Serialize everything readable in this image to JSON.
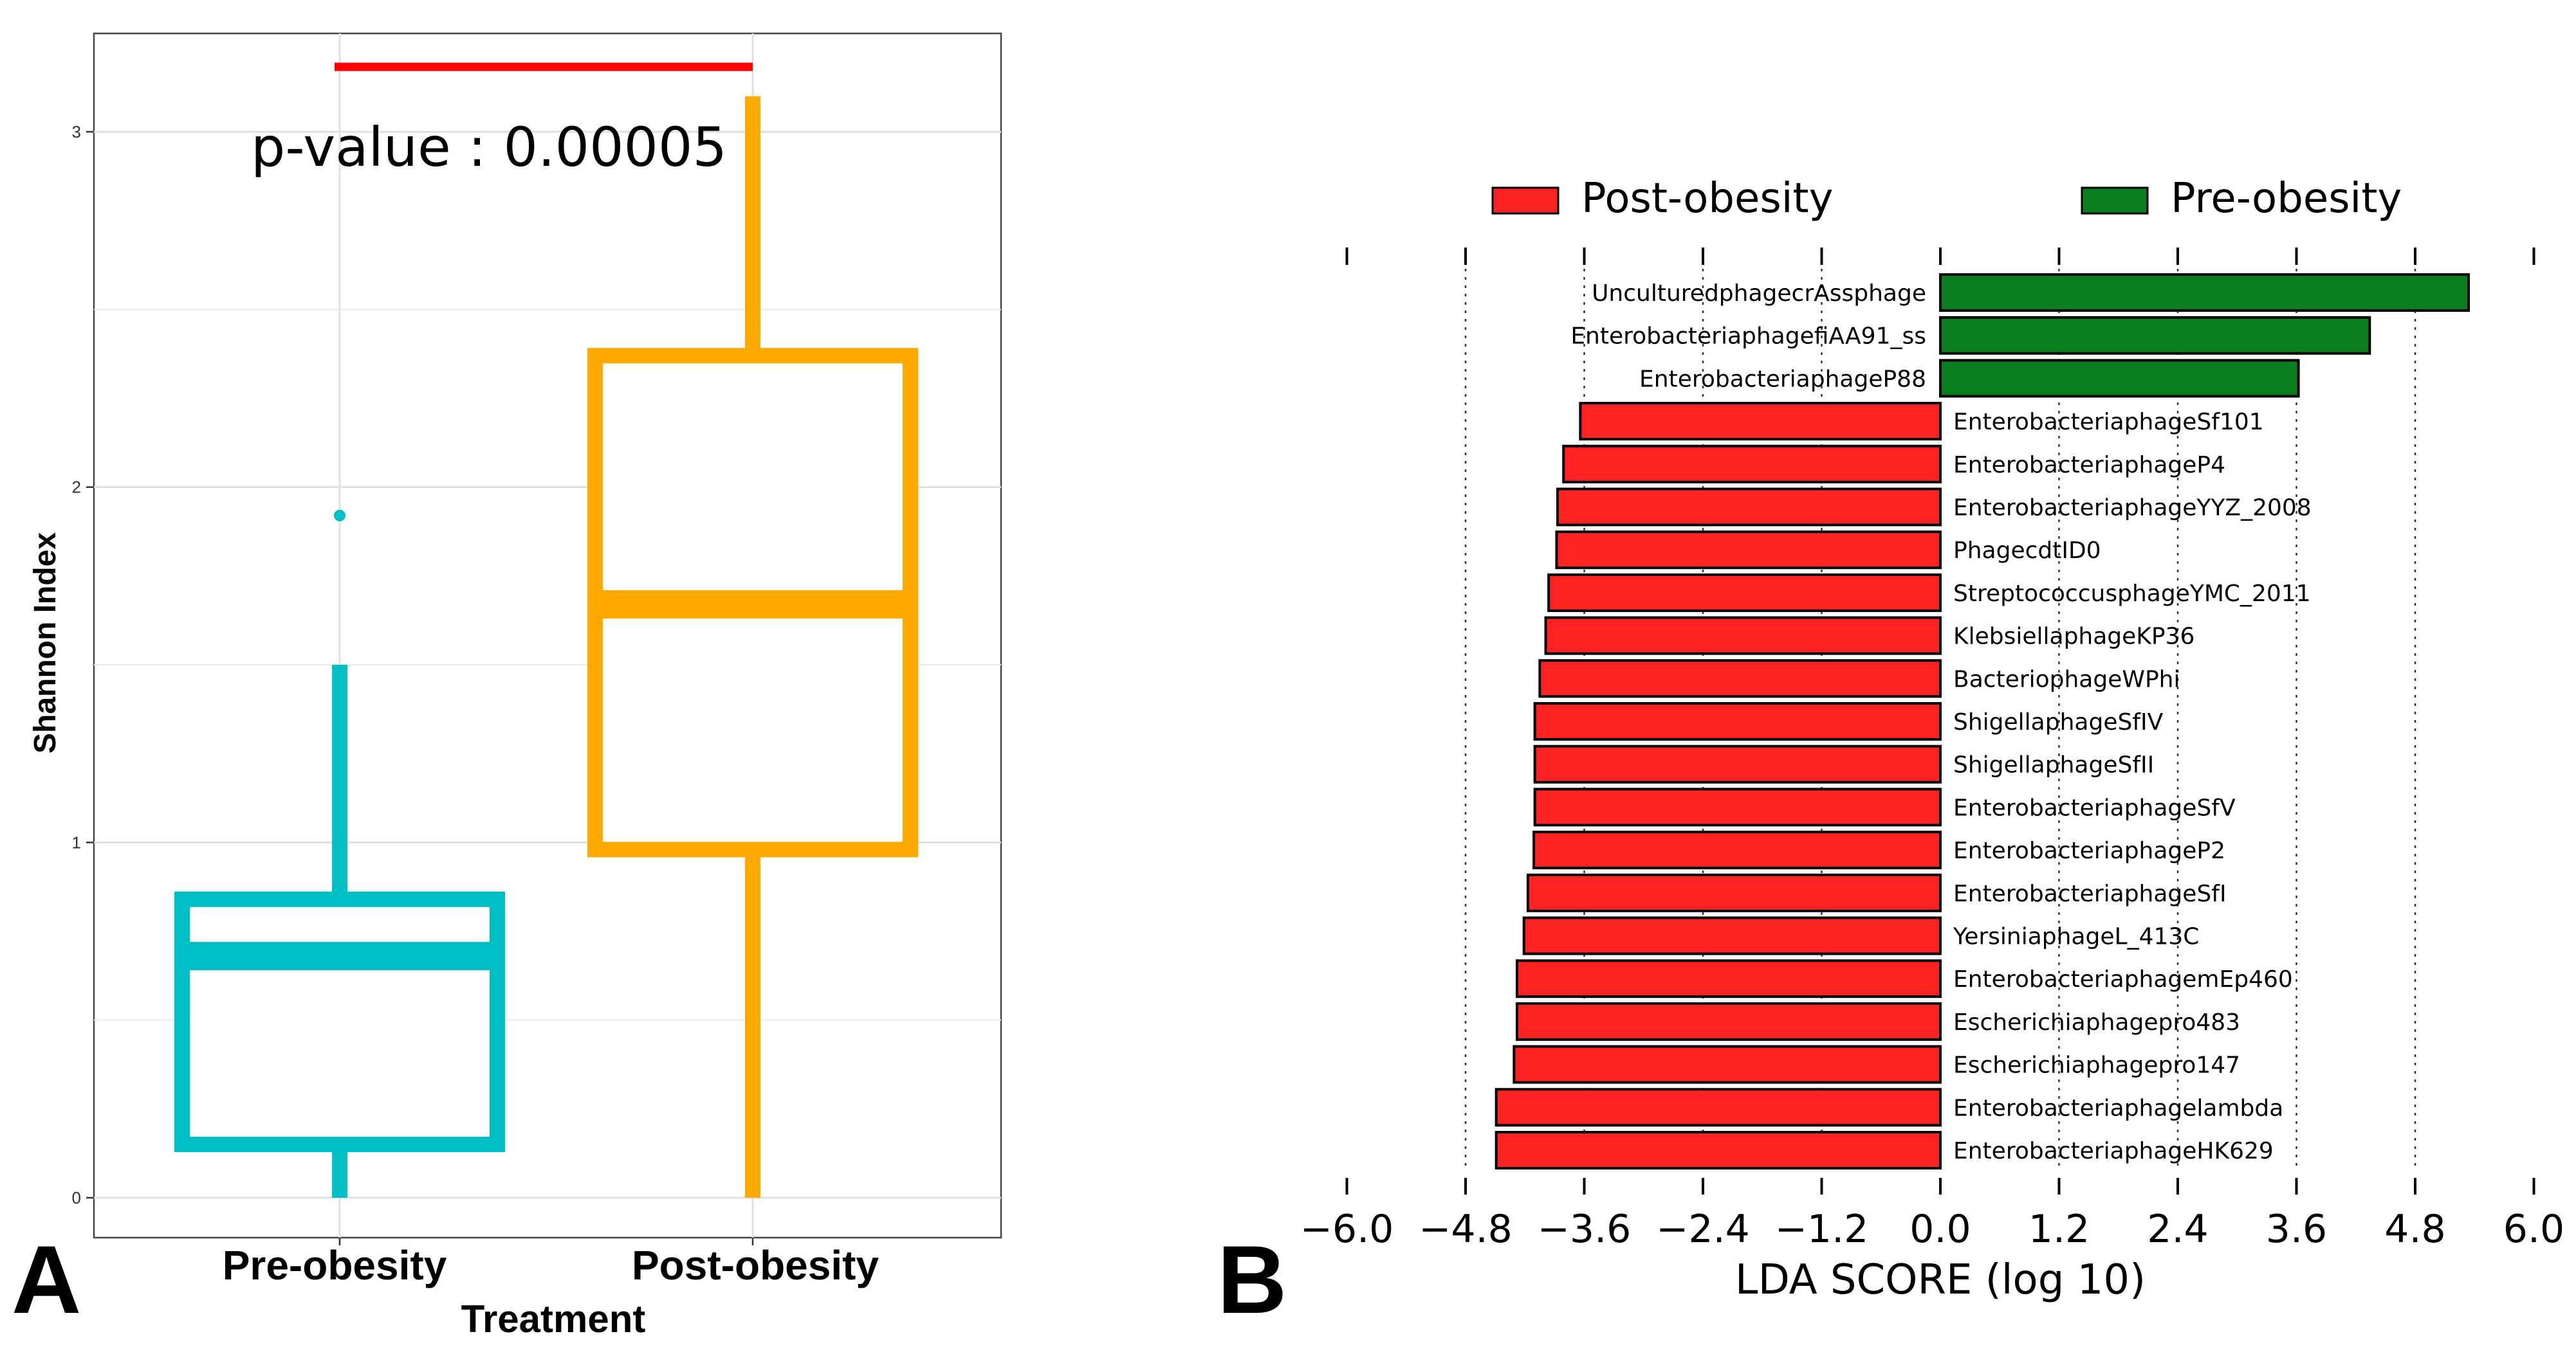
{
  "chart_data": [
    {
      "panel": "A",
      "type": "box",
      "xlabel": "Treatment",
      "ylabel": "Shannon Index",
      "ylim": [
        -0.03,
        3.2
      ],
      "yticks": [
        0,
        1,
        2,
        3
      ],
      "annotation": "p-value : 0.00005",
      "categories": [
        "Pre-obesity",
        "Post-obesity"
      ],
      "boxes": [
        {
          "name": "Pre-obesity",
          "color": "#00BFC4",
          "whisker_low": 0.0,
          "q1": 0.15,
          "median": 0.68,
          "q3": 0.84,
          "whisker_high": 1.5,
          "outliers": [
            1.92
          ]
        },
        {
          "name": "Post-obesity",
          "color": "#FFAA00",
          "whisker_low": 0.0,
          "q1": 0.98,
          "median": 1.67,
          "q3": 2.37,
          "whisker_high": 3.1,
          "outliers": []
        }
      ],
      "significance_bar_color": "#FF0000"
    },
    {
      "panel": "B",
      "type": "bar",
      "orientation": "horizontal",
      "xlabel": "LDA SCORE (log 10)",
      "xlim": [
        -6.0,
        6.0
      ],
      "xticks": [
        "-6.0",
        "-4.8",
        "-3.6",
        "-2.4",
        "-1.2",
        "0.0",
        "1.2",
        "2.4",
        "3.6",
        "4.8",
        "6.0"
      ],
      "legend": [
        {
          "name": "Post-obesity",
          "color": "#FF2222"
        },
        {
          "name": "Pre-obesity",
          "color": "#0A7D1E"
        }
      ],
      "series": [
        {
          "name": "Pre-obesity",
          "color": "#0A7D1E",
          "categories": [
            "UnculturedphagecrAssphage",
            "EnterobacteriaphagefiAA91_ss",
            "EnterobacteriaphageP88"
          ],
          "values": [
            5.34,
            4.34,
            3.62
          ]
        },
        {
          "name": "Post-obesity",
          "color": "#FF2222",
          "categories": [
            "EnterobacteriaphageSf101",
            "EnterobacteriaphageP4",
            "EnterobacteriaphageYYZ_2008",
            "PhagecdtID0",
            "StreptococcusphageYMC_2011",
            "KlebsiellaphageKP36",
            "BacteriophageWPhi",
            "ShigellaphageSfIV",
            "ShigellaphageSfII",
            "EnterobacteriaphageSfV",
            "EnterobacteriaphageP2",
            "EnterobacteriaphageSfI",
            "YersiniaphageL_413C",
            "EnterobacteriaphagemEp460",
            "Escherichiaphagepro483",
            "Escherichiaphagepro147",
            "Enterobacteriaphagelambda",
            "EnterobacteriaphageHK629"
          ],
          "values": [
            -3.64,
            -3.81,
            -3.87,
            -3.88,
            -3.96,
            -3.99,
            -4.05,
            -4.1,
            -4.1,
            -4.1,
            -4.11,
            -4.17,
            -4.21,
            -4.28,
            -4.28,
            -4.31,
            -4.49,
            -4.49
          ]
        }
      ]
    }
  ],
  "panel_labels": [
    "A",
    "B"
  ]
}
